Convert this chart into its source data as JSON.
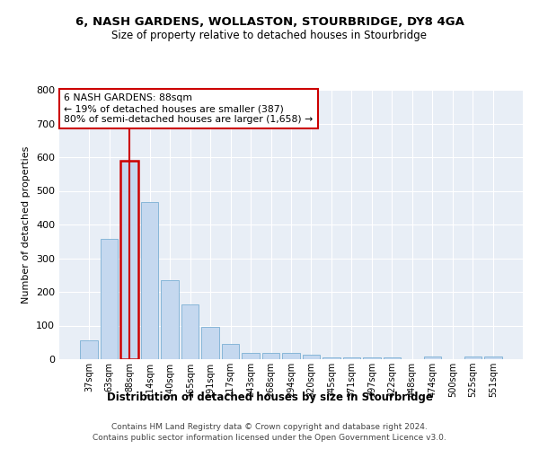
{
  "title_line1": "6, NASH GARDENS, WOLLASTON, STOURBRIDGE, DY8 4GA",
  "title_line2": "Size of property relative to detached houses in Stourbridge",
  "xlabel": "Distribution of detached houses by size in Stourbridge",
  "ylabel": "Number of detached properties",
  "bar_color": "#c5d8ef",
  "bar_edge_color": "#7aafd4",
  "highlight_color": "#cc0000",
  "background_color": "#e8eef6",
  "categories": [
    "37sqm",
    "63sqm",
    "88sqm",
    "114sqm",
    "140sqm",
    "165sqm",
    "191sqm",
    "217sqm",
    "243sqm",
    "268sqm",
    "294sqm",
    "320sqm",
    "345sqm",
    "371sqm",
    "397sqm",
    "422sqm",
    "448sqm",
    "474sqm",
    "500sqm",
    "525sqm",
    "551sqm"
  ],
  "values": [
    55,
    357,
    590,
    468,
    235,
    162,
    96,
    45,
    20,
    18,
    18,
    13,
    5,
    5,
    5,
    5,
    0,
    8,
    0,
    8,
    7
  ],
  "highlight_index": 2,
  "annotation_text": "6 NASH GARDENS: 88sqm\n← 19% of detached houses are smaller (387)\n80% of semi-detached houses are larger (1,658) →",
  "ylim": [
    0,
    800
  ],
  "yticks": [
    0,
    100,
    200,
    300,
    400,
    500,
    600,
    700,
    800
  ],
  "footer_line1": "Contains HM Land Registry data © Crown copyright and database right 2024.",
  "footer_line2": "Contains public sector information licensed under the Open Government Licence v3.0."
}
